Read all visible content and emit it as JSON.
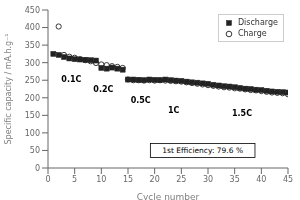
{
  "chart_data": {
    "type": "scatter",
    "xlabel": "Cycle number",
    "ylabel": "Specific capacity / mA.h.g⁻¹",
    "xlim": [
      0,
      45
    ],
    "ylim": [
      0,
      450
    ],
    "xticks": [
      0,
      5,
      10,
      15,
      20,
      25,
      30,
      35,
      40,
      45
    ],
    "yticks": [
      0,
      50,
      100,
      150,
      200,
      250,
      300,
      350,
      400,
      450
    ],
    "grid": false,
    "legend": "upper right",
    "series": [
      {
        "name": "Discharge",
        "color": "#222222",
        "marker": "square",
        "x": [
          1,
          2,
          3,
          4,
          5,
          6,
          7,
          8,
          9,
          10,
          11,
          12,
          13,
          14,
          15,
          16,
          17,
          18,
          19,
          20,
          21,
          22,
          23,
          24,
          25,
          26,
          27,
          28,
          29,
          30,
          31,
          32,
          33,
          34,
          35,
          36,
          37,
          38,
          39,
          40,
          41,
          42,
          43,
          44,
          45
        ],
        "values": [
          325,
          322,
          316,
          312,
          310,
          309,
          308,
          307,
          306,
          285,
          283,
          286,
          283,
          280,
          252,
          252,
          251,
          250,
          252,
          251,
          250,
          252,
          250,
          249,
          248,
          246,
          244,
          243,
          241,
          240,
          237,
          235,
          233,
          232,
          230,
          228,
          226,
          225,
          223,
          222,
          220,
          218,
          217,
          216,
          215
        ]
      },
      {
        "name": "Charge",
        "color": "#222222",
        "marker": "circle",
        "x": [
          2,
          3,
          4,
          5,
          6,
          7,
          8,
          9,
          10,
          11,
          12,
          13,
          14,
          15,
          16,
          17,
          18,
          19,
          20,
          21,
          22,
          23,
          24,
          25,
          26,
          27,
          28,
          29,
          30,
          31,
          32,
          33,
          34,
          35,
          36,
          37,
          38,
          39,
          40,
          41,
          42,
          43,
          44,
          45
        ],
        "values": [
          403,
          322,
          317,
          314,
          310,
          307,
          304,
          299,
          295,
          293,
          290,
          288,
          285,
          252,
          250,
          250,
          249,
          250,
          249,
          250,
          249,
          248,
          247,
          246,
          244,
          242,
          240,
          238,
          236,
          234,
          232,
          230,
          229,
          227,
          226,
          224,
          222,
          221,
          219,
          217,
          215,
          214,
          213,
          210
        ]
      }
    ],
    "annotations": [
      {
        "text": "0.1C",
        "x": 2.5,
        "y": 246
      },
      {
        "text": "0.2C",
        "x": 8.5,
        "y": 216
      },
      {
        "text": "0.5C",
        "x": 15.5,
        "y": 186
      },
      {
        "text": "1C",
        "x": 22.5,
        "y": 158
      },
      {
        "text": "1.5C",
        "x": 34.5,
        "y": 148
      }
    ],
    "note": {
      "text": "1st Efficiency: 79.6 %",
      "x": 29,
      "y": 50
    }
  }
}
